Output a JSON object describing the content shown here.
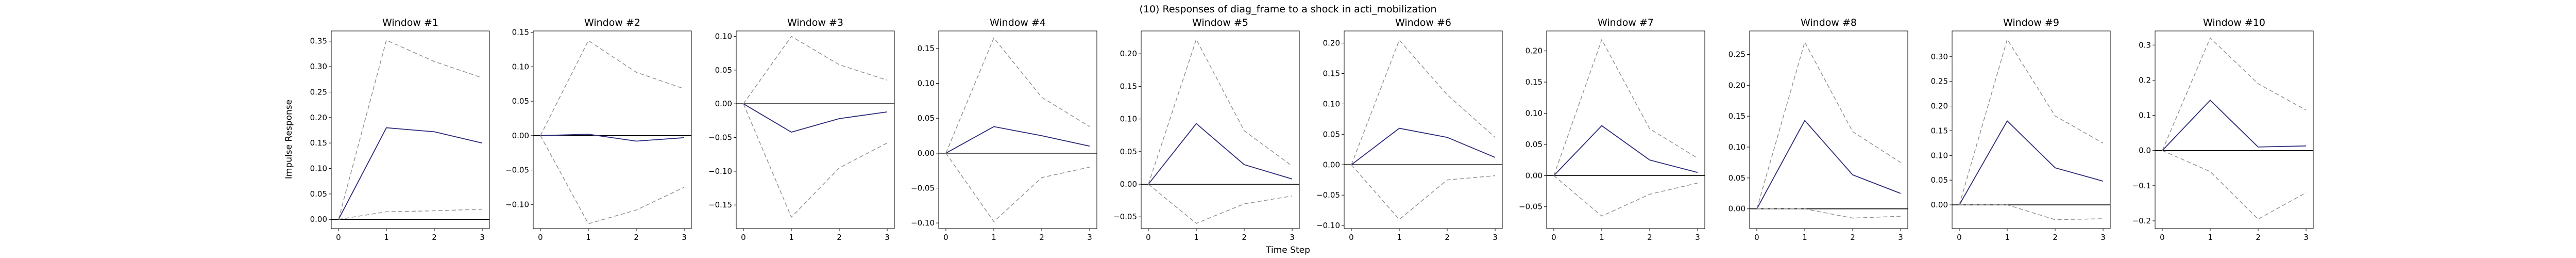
{
  "figure": {
    "suptitle": "(10) Responses of diag_frame to a shock in acti_mobilization",
    "xlabel": "Time Step",
    "ylabel": "Impulse Response"
  },
  "colors": {
    "response": "#2b2b7a",
    "band": "#8c8c8c",
    "zero": "#000000"
  },
  "chart_data": [
    {
      "type": "line",
      "title": "Window #1",
      "x": [
        0,
        1,
        2,
        3
      ],
      "series": [
        {
          "values": [
            0.0,
            0.18,
            0.172,
            0.15
          ]
        },
        {
          "values": [
            0.0,
            0.352,
            0.31,
            0.278
          ]
        },
        {
          "values": [
            0.0,
            0.015,
            0.017,
            0.02
          ]
        }
      ],
      "ylim": [
        -0.018,
        0.37
      ],
      "yticks": [
        0.0,
        0.05,
        0.1,
        0.15,
        0.2,
        0.25,
        0.3,
        0.35
      ],
      "ytick_labels": [
        "0.00",
        "0.05",
        "0.10",
        "0.15",
        "0.20",
        "0.25",
        "0.30",
        "0.35"
      ]
    },
    {
      "type": "line",
      "title": "Window #2",
      "x": [
        0,
        1,
        2,
        3
      ],
      "series": [
        {
          "values": [
            0.0,
            0.002,
            -0.008,
            -0.003
          ]
        },
        {
          "values": [
            0.0,
            0.138,
            0.092,
            0.068
          ]
        },
        {
          "values": [
            0.0,
            -0.128,
            -0.108,
            -0.075
          ]
        }
      ],
      "ylim": [
        -0.135,
        0.152
      ],
      "yticks": [
        -0.1,
        -0.05,
        0.0,
        0.05,
        0.1,
        0.15
      ],
      "ytick_labels": [
        "−0.10",
        "−0.05",
        "0.00",
        "0.05",
        "0.10",
        "0.15"
      ]
    },
    {
      "type": "line",
      "title": "Window #3",
      "x": [
        0,
        1,
        2,
        3
      ],
      "series": [
        {
          "values": [
            0.0,
            -0.042,
            -0.022,
            -0.012
          ]
        },
        {
          "values": [
            0.0,
            0.1,
            0.058,
            0.035
          ]
        },
        {
          "values": [
            0.0,
            -0.168,
            -0.095,
            -0.058
          ]
        }
      ],
      "ylim": [
        -0.185,
        0.108
      ],
      "yticks": [
        -0.15,
        -0.1,
        -0.05,
        0.0,
        0.05,
        0.1
      ],
      "ytick_labels": [
        "−0.15",
        "−0.10",
        "−0.05",
        "0.00",
        "0.05",
        "0.10"
      ]
    },
    {
      "type": "line",
      "title": "Window #4",
      "x": [
        0,
        1,
        2,
        3
      ],
      "series": [
        {
          "values": [
            0.0,
            0.038,
            0.025,
            0.01
          ]
        },
        {
          "values": [
            0.0,
            0.165,
            0.08,
            0.038
          ]
        },
        {
          "values": [
            0.0,
            -0.098,
            -0.035,
            -0.02
          ]
        }
      ],
      "ylim": [
        -0.108,
        0.175
      ],
      "yticks": [
        -0.1,
        -0.05,
        0.0,
        0.05,
        0.1,
        0.15
      ],
      "ytick_labels": [
        "−0.10",
        "−0.05",
        "0.00",
        "0.05",
        "0.10",
        "0.15"
      ]
    },
    {
      "type": "line",
      "title": "Window #5",
      "x": [
        0,
        1,
        2,
        3
      ],
      "series": [
        {
          "values": [
            0.0,
            0.093,
            0.03,
            0.008
          ]
        },
        {
          "values": [
            0.0,
            0.222,
            0.082,
            0.028
          ]
        },
        {
          "values": [
            0.0,
            -0.06,
            -0.03,
            -0.018
          ]
        }
      ],
      "ylim": [
        -0.068,
        0.235
      ],
      "yticks": [
        -0.05,
        0.0,
        0.05,
        0.1,
        0.15,
        0.2
      ],
      "ytick_labels": [
        "−0.05",
        "0.00",
        "0.05",
        "0.10",
        "0.15",
        "0.20"
      ]
    },
    {
      "type": "line",
      "title": "Window #6",
      "x": [
        0,
        1,
        2,
        3
      ],
      "series": [
        {
          "values": [
            0.0,
            0.06,
            0.045,
            0.012
          ]
        },
        {
          "values": [
            0.0,
            0.205,
            0.115,
            0.045
          ]
        },
        {
          "values": [
            0.0,
            -0.09,
            -0.025,
            -0.018
          ]
        }
      ],
      "ylim": [
        -0.105,
        0.22
      ],
      "yticks": [
        -0.1,
        -0.05,
        0.0,
        0.05,
        0.1,
        0.15,
        0.2
      ],
      "ytick_labels": [
        "−0.10",
        "−0.05",
        "0.00",
        "0.05",
        "0.10",
        "0.15",
        "0.20"
      ]
    },
    {
      "type": "line",
      "title": "Window #7",
      "x": [
        0,
        1,
        2,
        3
      ],
      "series": [
        {
          "values": [
            0.0,
            0.08,
            0.025,
            0.005
          ]
        },
        {
          "values": [
            0.0,
            0.218,
            0.075,
            0.028
          ]
        },
        {
          "values": [
            0.0,
            -0.065,
            -0.03,
            -0.012
          ]
        }
      ],
      "ylim": [
        -0.085,
        0.232
      ],
      "yticks": [
        -0.05,
        0.0,
        0.05,
        0.1,
        0.15,
        0.2
      ],
      "ytick_labels": [
        "−0.05",
        "0.00",
        "0.05",
        "0.10",
        "0.15",
        "0.20"
      ]
    },
    {
      "type": "line",
      "title": "Window #8",
      "x": [
        0,
        1,
        2,
        3
      ],
      "series": [
        {
          "values": [
            0.0,
            0.143,
            0.055,
            0.025
          ]
        },
        {
          "values": [
            0.0,
            0.27,
            0.125,
            0.075
          ]
        },
        {
          "values": [
            0.0,
            0.0,
            -0.015,
            -0.012
          ]
        }
      ],
      "ylim": [
        -0.032,
        0.288
      ],
      "yticks": [
        0.0,
        0.05,
        0.1,
        0.15,
        0.2,
        0.25
      ],
      "ytick_labels": [
        "0.00",
        "0.05",
        "0.10",
        "0.15",
        "0.20",
        "0.25"
      ]
    },
    {
      "type": "line",
      "title": "Window #9",
      "x": [
        0,
        1,
        2,
        3
      ],
      "series": [
        {
          "values": [
            0.0,
            0.17,
            0.075,
            0.048
          ]
        },
        {
          "values": [
            0.0,
            0.335,
            0.18,
            0.125
          ]
        },
        {
          "values": [
            0.0,
            0.0,
            -0.03,
            -0.028
          ]
        }
      ],
      "ylim": [
        -0.048,
        0.352
      ],
      "yticks": [
        0.0,
        0.05,
        0.1,
        0.15,
        0.2,
        0.25,
        0.3
      ],
      "ytick_labels": [
        "0.00",
        "0.05",
        "0.10",
        "0.15",
        "0.20",
        "0.25",
        "0.30"
      ]
    },
    {
      "type": "line",
      "title": "Window #10",
      "x": [
        0,
        1,
        2,
        3
      ],
      "series": [
        {
          "values": [
            0.0,
            0.143,
            0.01,
            0.013
          ]
        },
        {
          "values": [
            0.0,
            0.32,
            0.19,
            0.115
          ]
        },
        {
          "values": [
            0.0,
            -0.06,
            -0.195,
            -0.12
          ]
        }
      ],
      "ylim": [
        -0.222,
        0.34
      ],
      "yticks": [
        -0.2,
        -0.1,
        0.0,
        0.1,
        0.2,
        0.3
      ],
      "ytick_labels": [
        "−0.2",
        "−0.1",
        "0.0",
        "0.1",
        "0.2",
        "0.3"
      ]
    }
  ]
}
